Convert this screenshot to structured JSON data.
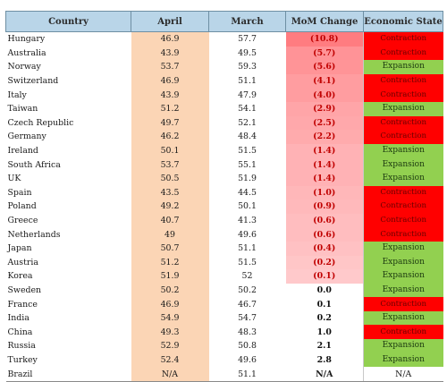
{
  "table": {
    "headers": [
      "Country",
      "April",
      "March",
      "MoM Change",
      "Economic State"
    ],
    "rows": [
      {
        "country": "Hungary",
        "april": "46.9",
        "march": "57.7",
        "mom": "(10.8)",
        "state": "Contraction"
      },
      {
        "country": "Australia",
        "april": "43.9",
        "march": "49.5",
        "mom": "(5.7)",
        "state": "Contraction"
      },
      {
        "country": "Norway",
        "april": "53.7",
        "march": "59.3",
        "mom": "(5.6)",
        "state": "Expansion"
      },
      {
        "country": "Switzerland",
        "april": "46.9",
        "march": "51.1",
        "mom": "(4.1)",
        "state": "Contraction"
      },
      {
        "country": "Italy",
        "april": "43.9",
        "march": "47.9",
        "mom": "(4.0)",
        "state": "Contraction"
      },
      {
        "country": "Taiwan",
        "april": "51.2",
        "march": "54.1",
        "mom": "(2.9)",
        "state": "Expansion"
      },
      {
        "country": "Czech Republic",
        "april": "49.7",
        "march": "52.1",
        "mom": "(2.5)",
        "state": "Contraction"
      },
      {
        "country": "Germany",
        "april": "46.2",
        "march": "48.4",
        "mom": "(2.2)",
        "state": "Contraction"
      },
      {
        "country": "Ireland",
        "april": "50.1",
        "march": "51.5",
        "mom": "(1.4)",
        "state": "Expansion"
      },
      {
        "country": "South Africa",
        "april": "53.7",
        "march": "55.1",
        "mom": "(1.4)",
        "state": "Expansion"
      },
      {
        "country": "UK",
        "april": "50.5",
        "march": "51.9",
        "mom": "(1.4)",
        "state": "Expansion"
      },
      {
        "country": "Spain",
        "april": "43.5",
        "march": "44.5",
        "mom": "(1.0)",
        "state": "Contraction"
      },
      {
        "country": "Poland",
        "april": "49.2",
        "march": "50.1",
        "mom": "(0.9)",
        "state": "Contraction"
      },
      {
        "country": "Greece",
        "april": "40.7",
        "march": "41.3",
        "mom": "(0.6)",
        "state": "Contraction"
      },
      {
        "country": "Netherlands",
        "april": "49",
        "march": "49.6",
        "mom": "(0.6)",
        "state": "Contraction"
      },
      {
        "country": "Japan",
        "april": "50.7",
        "march": "51.1",
        "mom": "(0.4)",
        "state": "Expansion"
      },
      {
        "country": "Austria",
        "april": "51.2",
        "march": "51.5",
        "mom": "(0.2)",
        "state": "Expansion"
      },
      {
        "country": "Korea",
        "april": "51.9",
        "march": "52",
        "mom": "(0.1)",
        "state": "Expansion"
      },
      {
        "country": "Sweden",
        "april": "50.2",
        "march": "50.2",
        "mom": "0.0",
        "state": "Expansion"
      },
      {
        "country": "France",
        "april": "46.9",
        "march": "46.7",
        "mom": "0.1",
        "state": "Contraction"
      },
      {
        "country": "India",
        "april": "54.9",
        "march": "54.7",
        "mom": "0.2",
        "state": "Expansion"
      },
      {
        "country": "China",
        "april": "49.3",
        "march": "48.3",
        "mom": "1.0",
        "state": "Contraction"
      },
      {
        "country": "Russia",
        "april": "52.9",
        "march": "50.8",
        "mom": "2.1",
        "state": "Expansion"
      },
      {
        "country": "Turkey",
        "april": "52.4",
        "march": "49.6",
        "mom": "2.8",
        "state": "Expansion"
      },
      {
        "country": "Brazil",
        "april": "N/A",
        "march": "51.1",
        "mom": "N/A",
        "state": "N/A"
      }
    ]
  },
  "colors": {
    "header_bg": "#b9d5e8",
    "april_bg": "#fbd5b5",
    "mom_gradient_strong": "#ff7c80",
    "mom_gradient_weak": "#ffffff",
    "contraction": "#ff0000",
    "expansion": "#92d050",
    "negative_text": "#c00000"
  }
}
